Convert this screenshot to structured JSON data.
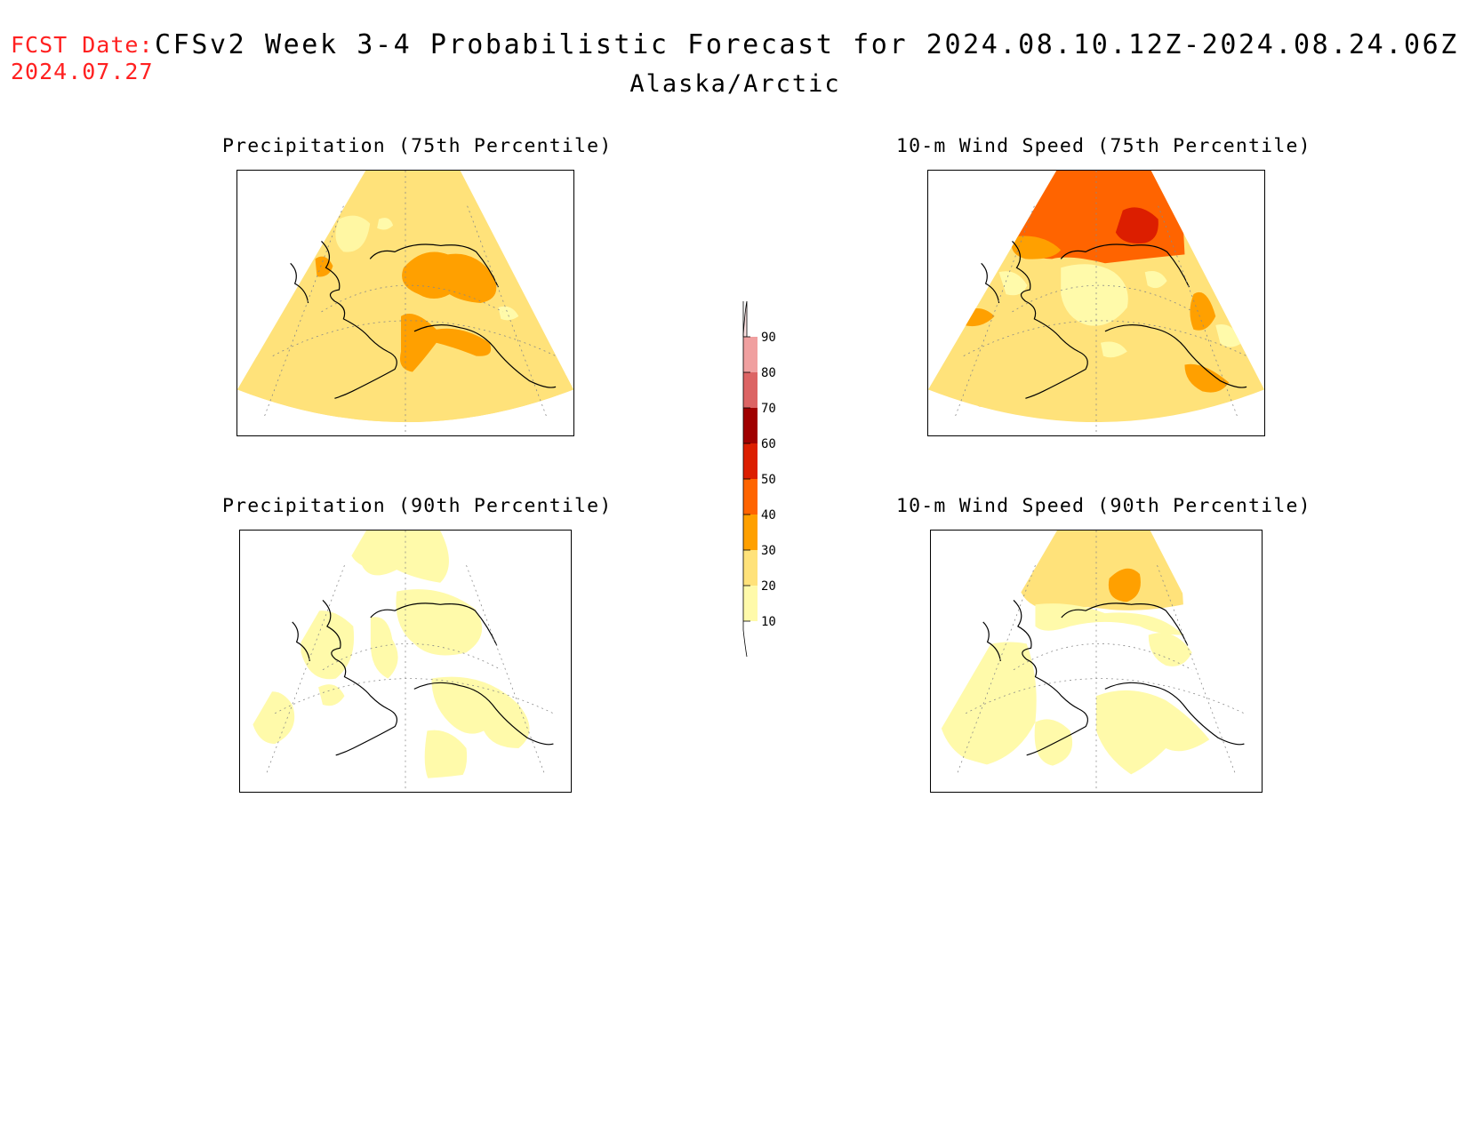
{
  "header": {
    "fcst_label": "FCST Date:",
    "fcst_date": "2024.07.27",
    "title": "CFSv2 Week 3-4 Probabilistic Forecast for 2024.08.10.12Z-2024.08.24.06Z",
    "region": "Alaska/Arctic"
  },
  "panels": [
    {
      "id": "precip75",
      "title": "Precipitation (75th Percentile)",
      "base_category": "20-30",
      "highlight_category": "30-40"
    },
    {
      "id": "wind75",
      "title": "10-m Wind Speed (75th Percentile)",
      "base_category": "20-30",
      "highlight_category": "40-50"
    },
    {
      "id": "precip90",
      "title": "Precipitation (90th Percentile)",
      "base_category": "10-20",
      "highlight_category": "10-20"
    },
    {
      "id": "wind90",
      "title": "10-m Wind Speed (90th Percentile)",
      "base_category": "10-20",
      "highlight_category": "30-40"
    }
  ],
  "colorbar": {
    "labels": [
      "90",
      "80",
      "70",
      "60",
      "50",
      "40",
      "30",
      "20",
      "10"
    ],
    "colors": {
      "90-100": "#fbe0e0",
      "80-90": "#f0a0a0",
      "70-80": "#dc6464",
      "60-70": "#a00000",
      "50-60": "#dc1e00",
      "40-50": "#ff6400",
      "30-40": "#ffa000",
      "20-30": "#ffe27a",
      "10-20": "#fffaaa",
      "0-10": "#ffffff"
    }
  }
}
